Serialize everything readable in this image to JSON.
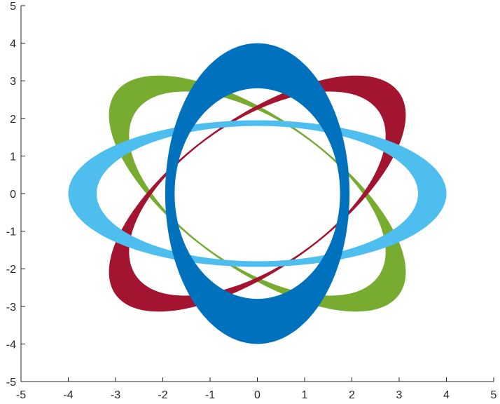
{
  "chart_data": {
    "type": "area",
    "title": "",
    "xlabel": "",
    "ylabel": "",
    "xlim": [
      -5,
      5
    ],
    "ylim": [
      -5,
      5
    ],
    "xticks": [
      -5,
      -4,
      -3,
      -2,
      -1,
      0,
      1,
      2,
      3,
      4,
      5
    ],
    "yticks": [
      -5,
      -4,
      -3,
      -2,
      -1,
      0,
      1,
      2,
      3,
      4,
      5
    ],
    "grid": false,
    "legend": "none",
    "series": [
      {
        "shape": "elliptical-ring",
        "color": "#77ac30",
        "center": [
          0,
          0
        ],
        "rotation_deg": -45,
        "outer_semi_axes": [
          4.05,
          1.82
        ],
        "inner_semi_axes": [
          3.4,
          1.78
        ]
      },
      {
        "shape": "elliptical-ring",
        "color": "#a2142f",
        "center": [
          0,
          0
        ],
        "rotation_deg": 45,
        "outer_semi_axes": [
          4.05,
          1.82
        ],
        "inner_semi_axes": [
          3.4,
          1.78
        ]
      },
      {
        "shape": "elliptical-ring",
        "color": "#4dbeee",
        "center": [
          0,
          0
        ],
        "rotation_deg": 0,
        "outer_semi_axes": [
          4.0,
          1.95
        ],
        "inner_semi_axes": [
          3.4,
          1.8
        ]
      },
      {
        "shape": "elliptical-ring",
        "color": "#0072bd",
        "center": [
          0,
          0
        ],
        "rotation_deg": 90,
        "outer_semi_axes": [
          4.0,
          1.95
        ],
        "inner_semi_axes": [
          2.8,
          1.75
        ]
      }
    ]
  }
}
